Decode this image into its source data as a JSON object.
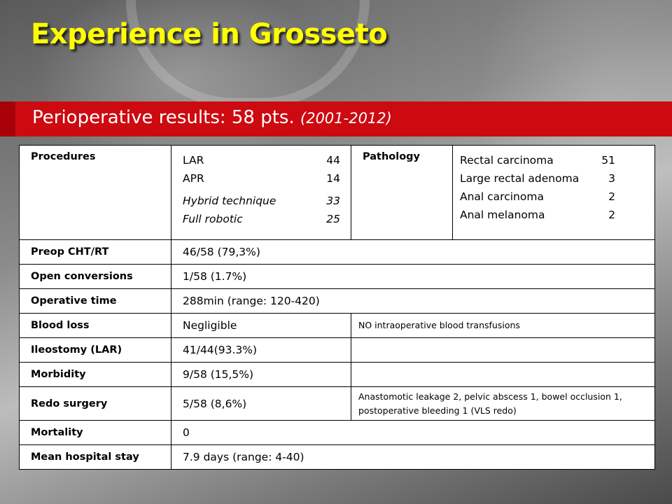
{
  "title": "Experience in Grosseto",
  "subtitle": {
    "main": "Perioperative results: 58 pts.",
    "years": "(2001-2012)"
  },
  "table": {
    "procedures": {
      "label": "Procedures",
      "items": [
        {
          "name": "LAR",
          "value": "44"
        },
        {
          "name": "APR",
          "value": "14"
        },
        {
          "name": "Hybrid technique",
          "value": "33"
        },
        {
          "name": "Full robotic",
          "value": "25"
        }
      ]
    },
    "pathology": {
      "label": "Pathology",
      "items": [
        {
          "name": "Rectal carcinoma",
          "value": "51"
        },
        {
          "name": "Large rectal adenoma",
          "value": "3"
        },
        {
          "name": "Anal carcinoma",
          "value": "2"
        },
        {
          "name": "Anal melanoma",
          "value": "2"
        }
      ]
    },
    "rows": [
      {
        "label": "Preop CHT/RT",
        "value": "46/58 (79,3%)"
      },
      {
        "label": "Open conversions",
        "value": "1/58 (1.7%)"
      },
      {
        "label": "Operative time",
        "value": "288min (range: 120-420)"
      },
      {
        "label": "Blood loss",
        "value": "Negligible",
        "note": "NO intraoperative blood transfusions"
      },
      {
        "label": "Ileostomy (LAR)",
        "value": "41/44(93.3%)",
        "note": ""
      },
      {
        "label": "Morbidity",
        "value": "9/58 (15,5%)",
        "note": ""
      },
      {
        "label": "Redo surgery",
        "value": "5/58 (8,6%)",
        "note": "Anastomotic leakage 2, pelvic abscess 1, bowel occlusion 1, postoperative bleeding 1 (VLS redo)"
      },
      {
        "label": "Mortality",
        "value": "0"
      },
      {
        "label": "Mean hospital stay",
        "value": "7.9 days (range: 4-40)"
      }
    ]
  }
}
